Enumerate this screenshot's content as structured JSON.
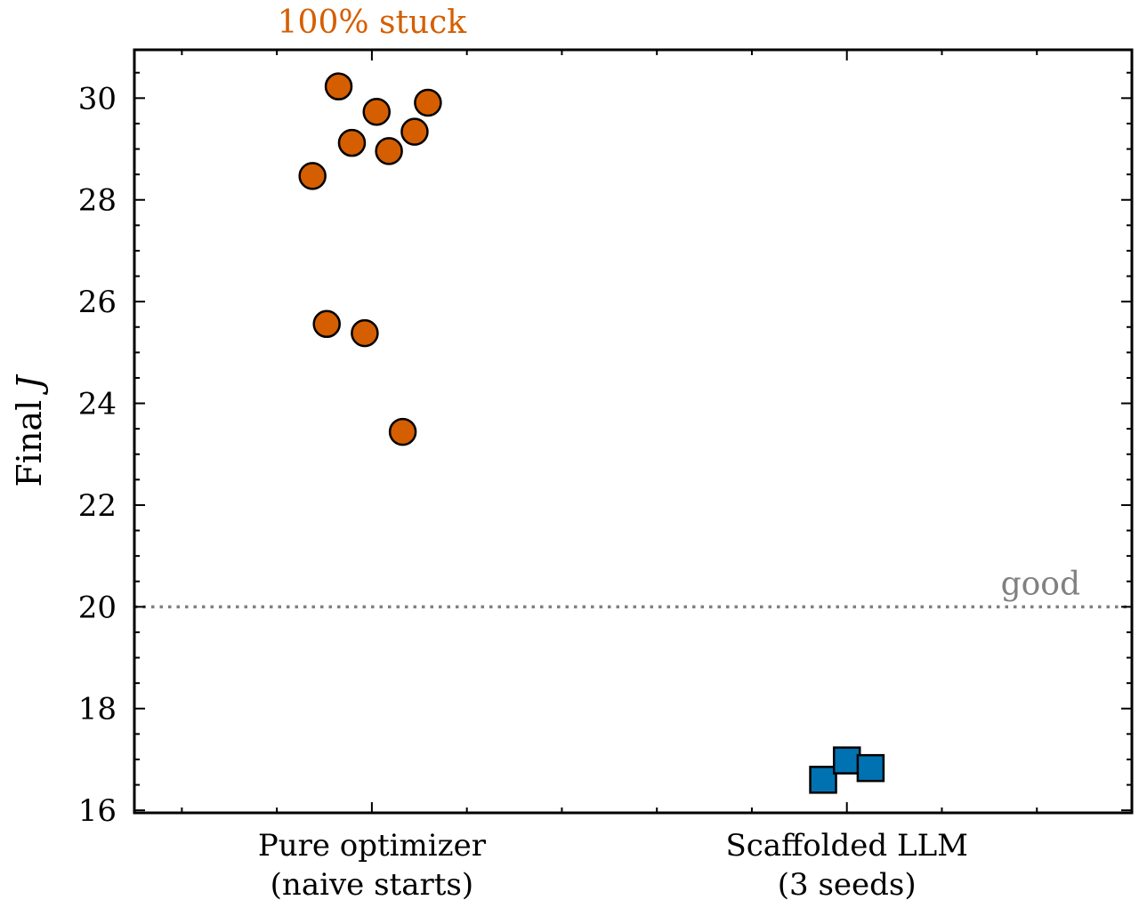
{
  "chart_data": {
    "type": "scatter",
    "ylabel": "Final",
    "ylabel_symbol": "J",
    "ylim": [
      15.95,
      30.95
    ],
    "yticks": [
      16,
      18,
      20,
      22,
      24,
      26,
      28,
      30
    ],
    "yminor_step": 0.5,
    "categories": [
      [
        "Pure optimizer",
        "(naive starts)"
      ],
      [
        "Scaffolded LLM",
        "(3 seeds)"
      ]
    ],
    "xlim": [
      -0.5,
      1.6
    ],
    "xminor_step": 0.2,
    "series": [
      {
        "category_index": 0,
        "marker": "circle",
        "color": "#d55e00",
        "points": [
          {
            "x": -0.125,
            "y": 28.47
          },
          {
            "x": -0.095,
            "y": 25.56
          },
          {
            "x": -0.07,
            "y": 30.23
          },
          {
            "x": -0.042,
            "y": 29.12
          },
          {
            "x": -0.015,
            "y": 25.38
          },
          {
            "x": 0.01,
            "y": 29.73
          },
          {
            "x": 0.036,
            "y": 28.96
          },
          {
            "x": 0.065,
            "y": 23.44
          },
          {
            "x": 0.09,
            "y": 29.34
          },
          {
            "x": 0.118,
            "y": 29.91
          }
        ]
      },
      {
        "category_index": 1,
        "marker": "square",
        "color": "#0072b2",
        "points": [
          {
            "x": 0.95,
            "y": 16.6
          },
          {
            "x": 1.0,
            "y": 16.98
          },
          {
            "x": 1.05,
            "y": 16.83
          }
        ]
      }
    ],
    "reference_line": {
      "y": 20,
      "label": "good",
      "color": "#808080",
      "style": "dotted"
    },
    "annotation": {
      "text": "100% stuck",
      "color": "#d55e00"
    }
  }
}
